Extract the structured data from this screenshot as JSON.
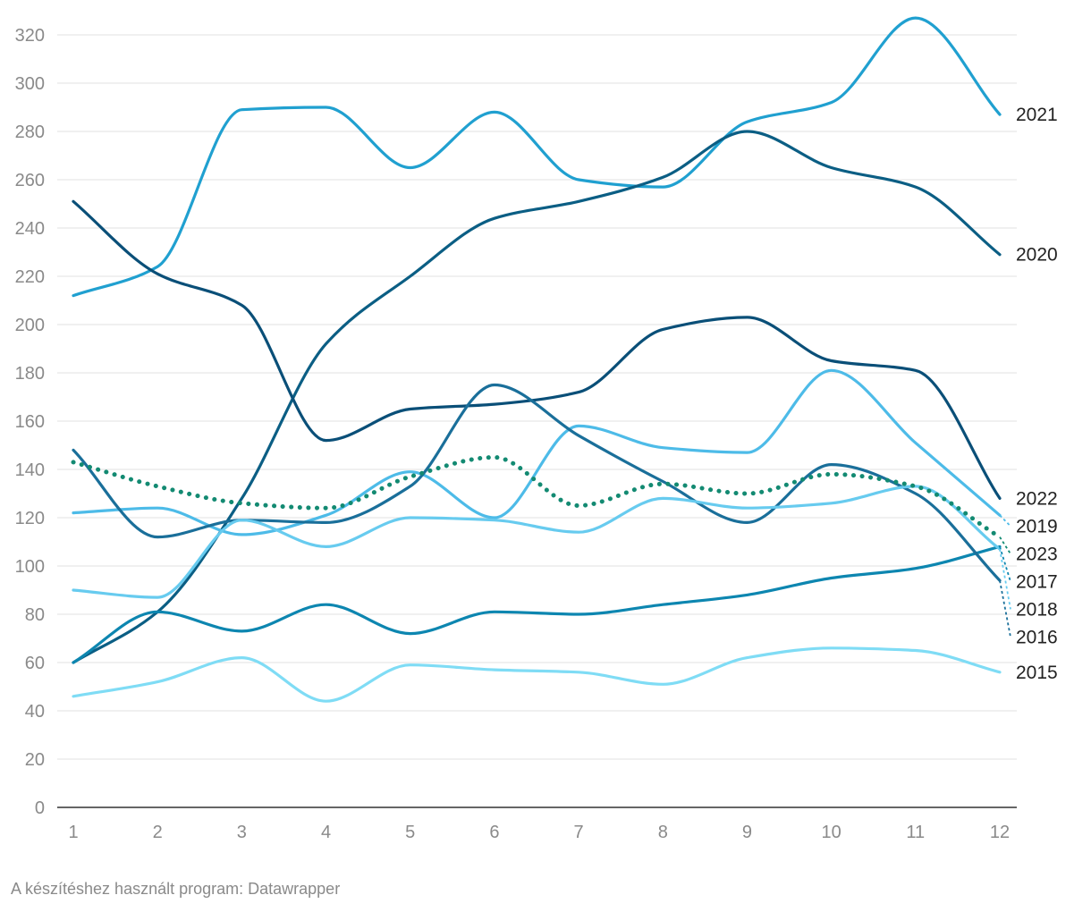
{
  "chart_data": {
    "type": "line",
    "title": "",
    "xlabel": "",
    "ylabel": "",
    "x": [
      1,
      2,
      3,
      4,
      5,
      6,
      7,
      8,
      9,
      10,
      11,
      12
    ],
    "x_ticks": [
      "1",
      "2",
      "3",
      "4",
      "5",
      "6",
      "7",
      "8",
      "9",
      "10",
      "11",
      "12"
    ],
    "y_ticks": [
      "0",
      "20",
      "40",
      "60",
      "80",
      "100",
      "120",
      "140",
      "160",
      "180",
      "200",
      "220",
      "240",
      "260",
      "280",
      "300",
      "320"
    ],
    "ylim": [
      0,
      330
    ],
    "grid": "horizontal",
    "legend": "direct labels at line ends (right)",
    "series": [
      {
        "name": "2021",
        "color": "#20a0d0",
        "dashed": false,
        "values": [
          212,
          224,
          289,
          290,
          265,
          288,
          260,
          257,
          284,
          292,
          327,
          287
        ]
      },
      {
        "name": "2020",
        "color": "#0b5e84",
        "dashed": false,
        "values": [
          60,
          81,
          128,
          192,
          220,
          244,
          251,
          261,
          280,
          265,
          257,
          229
        ]
      },
      {
        "name": "2022",
        "color": "#0a4f78",
        "dashed": false,
        "values": [
          251,
          221,
          208,
          152,
          165,
          167,
          172,
          198,
          203,
          185,
          181,
          128
        ]
      },
      {
        "name": "2019",
        "color": "#4dbbe8",
        "dashed": false,
        "values": [
          122,
          124,
          113,
          121,
          139,
          120,
          158,
          149,
          147,
          181,
          151,
          121
        ]
      },
      {
        "name": "2023",
        "color": "#138a72",
        "dashed": true,
        "values": [
          143,
          133,
          126,
          124,
          137,
          145,
          125,
          134,
          130,
          138,
          133,
          112
        ]
      },
      {
        "name": "2017",
        "color": "#0d86b0",
        "dashed": false,
        "values": [
          60,
          81,
          73,
          84,
          72,
          81,
          80,
          84,
          88,
          95,
          99,
          108
        ]
      },
      {
        "name": "2016",
        "color": "#1a6f9a",
        "dashed": false,
        "values": [
          148,
          112,
          119,
          118,
          133,
          175,
          154,
          135,
          118,
          142,
          130,
          94
        ]
      },
      {
        "name": "2018",
        "color": "#67cbef",
        "dashed": false,
        "values": [
          90,
          87,
          119,
          108,
          120,
          119,
          114,
          128,
          124,
          126,
          133,
          107
        ]
      },
      {
        "name": "2015",
        "color": "#7fdcf5",
        "dashed": false,
        "values": [
          46,
          52,
          62,
          44,
          59,
          57,
          56,
          51,
          62,
          66,
          65,
          56
        ]
      }
    ]
  },
  "footer": {
    "text": "A készítéshez használt program: Datawrapper"
  }
}
